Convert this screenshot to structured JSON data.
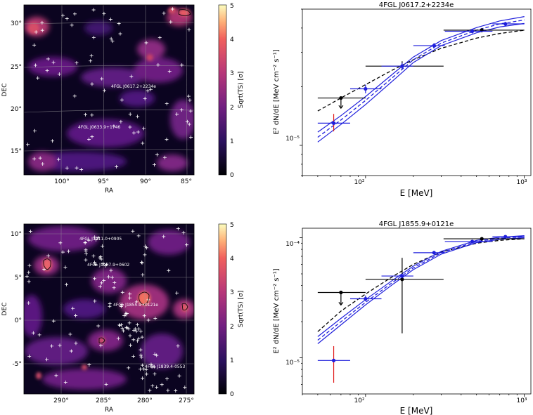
{
  "colors": {
    "black": "#000000",
    "blue": "#1f1fdc",
    "red": "#e11d1d",
    "map_low": "#000004",
    "map_mid": "#7b2382",
    "map_high": "#fcfdbf"
  },
  "colorbar": {
    "label": "Sqrt(TS) [σ]",
    "ticks": [
      "0",
      "1",
      "2",
      "3",
      "4",
      "5"
    ]
  },
  "chart_data": [
    {
      "type": "heatmap",
      "name": "tsmap-top",
      "xlabel": "RA",
      "ylabel": "DEC",
      "xticks": [
        "100°",
        "95°",
        "90°",
        "85°"
      ],
      "yticks": [
        "15°",
        "20°",
        "25°",
        "30°"
      ],
      "annotations": [
        "4FGL J0617.2+2234e",
        "4FGL J0633.9+1746"
      ],
      "colorbar_range": [
        0,
        5
      ]
    },
    {
      "type": "line",
      "name": "sed-top",
      "title": "4FGL J0617.2+2234e",
      "xlabel": "E [MeV]",
      "ylabel": "E² dN/dE [MeV cm⁻² s⁻¹]",
      "xscale": "log",
      "yscale": "log",
      "xlim": [
        40,
        1100
      ],
      "ylim": [
        7e-06,
        5e-05
      ],
      "xtick_labels": [
        "10²",
        "10³"
      ],
      "ytick_labels": [
        "10⁻⁵"
      ],
      "series": [
        {
          "name": "black-model-dashed",
          "style": "dashed",
          "color": "black",
          "x": [
            50,
            70,
            100,
            150,
            200,
            300,
            500,
            700,
            1000
          ],
          "y": [
            1.5e-05,
            1.75e-05,
            2.05e-05,
            2.45e-05,
            2.75e-05,
            3.15e-05,
            3.55e-05,
            3.75e-05,
            3.9e-05
          ]
        },
        {
          "name": "blue-model-center",
          "style": "dashed",
          "color": "blue",
          "x": [
            50,
            70,
            100,
            150,
            200,
            300,
            500,
            700,
            1000
          ],
          "y": [
            1.1e-05,
            1.35e-05,
            1.7e-05,
            2.25e-05,
            2.75e-05,
            3.35e-05,
            3.9e-05,
            4.2e-05,
            4.4e-05
          ]
        },
        {
          "name": "blue-model-upper",
          "style": "solid",
          "color": "blue",
          "x": [
            50,
            70,
            100,
            150,
            200,
            300,
            500,
            700,
            1000
          ],
          "y": [
            1.17e-05,
            1.42e-05,
            1.78e-05,
            2.34e-05,
            2.84e-05,
            3.45e-05,
            4.02e-05,
            4.35e-05,
            4.58e-05
          ]
        },
        {
          "name": "blue-model-lower",
          "style": "solid",
          "color": "blue",
          "x": [
            50,
            70,
            100,
            150,
            200,
            300,
            500,
            700,
            1000
          ],
          "y": [
            1.04e-05,
            1.28e-05,
            1.62e-05,
            2.16e-05,
            2.66e-05,
            3.25e-05,
            3.78e-05,
            4.05e-05,
            4.22e-05
          ]
        }
      ],
      "points": [
        {
          "name": "black-pt-1",
          "color": "black",
          "x": 70,
          "y": 1.75e-05,
          "xlo": 50,
          "xhi": 100,
          "ylo": 1.55e-05,
          "yhi": 1.75e-05,
          "upper_limit": true
        },
        {
          "name": "black-pt-2",
          "color": "black",
          "x": 170,
          "y": 2.55e-05,
          "xlo": 100,
          "xhi": 310,
          "ylo": 2.45e-05,
          "yhi": 2.7e-05
        },
        {
          "name": "black-pt-3",
          "color": "black",
          "x": 540,
          "y": 3.9e-05,
          "xlo": 310,
          "xhi": 1000,
          "ylo": 3.8e-05,
          "yhi": 4e-05
        },
        {
          "name": "blue-pt-1",
          "color": "blue",
          "errcolor": "red",
          "x": 63,
          "y": 1.3e-05,
          "xlo": 50,
          "xhi": 80,
          "ylo": 1.18e-05,
          "yhi": 1.45e-05
        },
        {
          "name": "blue-pt-2",
          "color": "blue",
          "x": 100,
          "y": 1.95e-05,
          "xlo": 80,
          "xhi": 126,
          "ylo": 1.85e-05,
          "yhi": 2.05e-05
        },
        {
          "name": "blue-pt-3",
          "color": "blue",
          "x": 170,
          "y": 2.55e-05,
          "xlo": 126,
          "xhi": 200,
          "ylo": 2.45e-05,
          "yhi": 2.65e-05
        },
        {
          "name": "blue-pt-4",
          "color": "blue",
          "x": 270,
          "y": 3.25e-05,
          "xlo": 200,
          "xhi": 316,
          "ylo": 3.15e-05,
          "yhi": 3.35e-05
        },
        {
          "name": "blue-pt-5",
          "color": "blue",
          "x": 470,
          "y": 3.85e-05,
          "xlo": 316,
          "xhi": 630,
          "ylo": 3.75e-05,
          "yhi": 3.95e-05
        },
        {
          "name": "blue-pt-6",
          "color": "blue",
          "x": 760,
          "y": 4.2e-05,
          "xlo": 630,
          "xhi": 1000,
          "ylo": 4.1e-05,
          "yhi": 4.3e-05
        }
      ]
    },
    {
      "type": "heatmap",
      "name": "tsmap-bottom",
      "xlabel": "RA",
      "ylabel": "DEC",
      "xticks": [
        "290°",
        "285°",
        "280°",
        "275°"
      ],
      "yticks": [
        "-5°",
        "0°",
        "5°",
        "10°"
      ],
      "annotations": [
        "4FGL J1911.0+0905",
        "4FGL J1907.9+0602",
        "4FGL J1855.9+0121e",
        "4FGL J1839.4-0553"
      ],
      "colorbar_range": [
        0,
        5
      ]
    },
    {
      "type": "line",
      "name": "sed-bottom",
      "title": "4FGL J1855.9+0121e",
      "xlabel": "E [MeV]",
      "ylabel": "E² dN/dE [MeV cm⁻² s⁻¹]",
      "xscale": "log",
      "yscale": "log",
      "xlim": [
        40,
        1100
      ],
      "ylim": [
        5e-06,
        0.00012
      ],
      "xtick_labels": [
        "10²",
        "10³"
      ],
      "ytick_labels": [
        "10⁻⁵",
        "10⁻⁴"
      ],
      "series": [
        {
          "name": "black-model-dashed",
          "style": "dashed",
          "color": "black",
          "x": [
            50,
            70,
            100,
            150,
            200,
            300,
            500,
            700,
            1000
          ],
          "y": [
            1.65e-05,
            2.45e-05,
            3.4e-05,
            4.8e-05,
            6e-05,
            7.6e-05,
            9e-05,
            9.5e-05,
            9.8e-05
          ]
        },
        {
          "name": "blue-model-center",
          "style": "dashed",
          "color": "blue",
          "x": [
            50,
            70,
            100,
            150,
            200,
            300,
            500,
            700,
            1000
          ],
          "y": [
            1.4e-05,
            2e-05,
            2.9e-05,
            4.3e-05,
            5.6e-05,
            7.5e-05,
            9.3e-05,
            9.9e-05,
            0.000102
          ]
        },
        {
          "name": "blue-model-upper",
          "style": "solid",
          "color": "blue",
          "x": [
            50,
            70,
            100,
            150,
            200,
            300,
            500,
            700,
            1000
          ],
          "y": [
            1.5e-05,
            2.13e-05,
            3.05e-05,
            4.48e-05,
            5.8e-05,
            7.7e-05,
            9.5e-05,
            0.000101,
            0.000104
          ]
        },
        {
          "name": "blue-model-lower",
          "style": "solid",
          "color": "blue",
          "x": [
            50,
            70,
            100,
            150,
            200,
            300,
            500,
            700,
            1000
          ],
          "y": [
            1.31e-05,
            1.88e-05,
            2.76e-05,
            4.13e-05,
            5.42e-05,
            7.3e-05,
            9.1e-05,
            9.7e-05,
            0.0001
          ]
        }
      ],
      "points": [
        {
          "name": "black-pt-1",
          "color": "black",
          "x": 70,
          "y": 3.5e-05,
          "xlo": 50,
          "xhi": 100,
          "ylo": 2.75e-05,
          "yhi": 3.5e-05,
          "upper_limit": true
        },
        {
          "name": "black-pt-2",
          "color": "black",
          "x": 170,
          "y": 4.5e-05,
          "xlo": 100,
          "xhi": 310,
          "ylo": 1.6e-05,
          "yhi": 6.8e-05
        },
        {
          "name": "black-pt-3",
          "color": "black",
          "x": 540,
          "y": 9.8e-05,
          "xlo": 310,
          "xhi": 1000,
          "ylo": 9.6e-05,
          "yhi": 0.0001
        },
        {
          "name": "blue-pt-1",
          "color": "blue",
          "errcolor": "red",
          "x": 63,
          "y": 9.5e-06,
          "xlo": 50,
          "xhi": 80,
          "ylo": 6.2e-06,
          "yhi": 1.25e-05
        },
        {
          "name": "blue-pt-2",
          "color": "blue",
          "x": 100,
          "y": 3.1e-05,
          "xlo": 80,
          "xhi": 126,
          "ylo": 2.95e-05,
          "yhi": 3.3e-05
        },
        {
          "name": "blue-pt-3",
          "color": "blue",
          "x": 170,
          "y": 4.8e-05,
          "xlo": 126,
          "xhi": 200,
          "ylo": 4.6e-05,
          "yhi": 5e-05
        },
        {
          "name": "blue-pt-4",
          "color": "blue",
          "x": 270,
          "y": 7.5e-05,
          "xlo": 200,
          "xhi": 316,
          "ylo": 7.3e-05,
          "yhi": 7.7e-05
        },
        {
          "name": "blue-pt-5",
          "color": "blue",
          "x": 470,
          "y": 9.3e-05,
          "xlo": 316,
          "xhi": 630,
          "ylo": 9.1e-05,
          "yhi": 9.5e-05
        },
        {
          "name": "blue-pt-6",
          "color": "blue",
          "x": 760,
          "y": 0.000102,
          "xlo": 630,
          "xhi": 1000,
          "ylo": 0.0001,
          "yhi": 0.000104
        }
      ]
    }
  ]
}
